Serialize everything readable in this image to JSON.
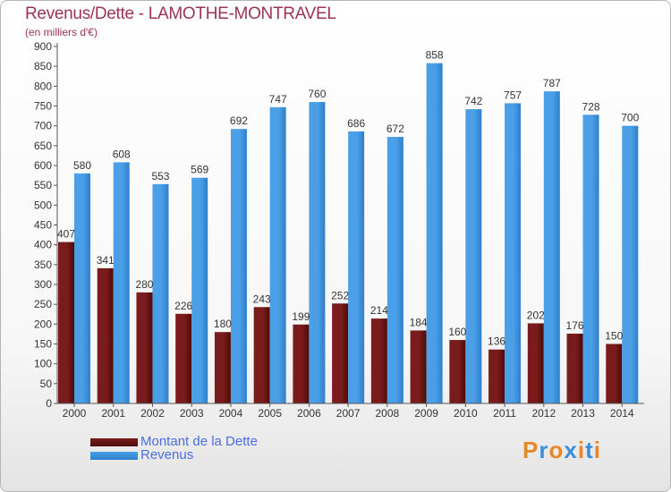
{
  "title": "Revenus/Dette - LAMOTHE-MONTRAVEL",
  "subtitle": "(en milliers d'€)",
  "chart_data": {
    "type": "bar",
    "categories": [
      "2000",
      "2001",
      "2002",
      "2003",
      "2004",
      "2005",
      "2006",
      "2007",
      "2008",
      "2009",
      "2010",
      "2011",
      "2012",
      "2013",
      "2014"
    ],
    "series": [
      {
        "name": "Montant de la Dette",
        "color": "#7b1c1c",
        "values": [
          407,
          341,
          280,
          226,
          180,
          243,
          199,
          252,
          214,
          184,
          160,
          136,
          202,
          176,
          150
        ]
      },
      {
        "name": "Revenus",
        "color": "#4a9fe6",
        "values": [
          580,
          608,
          553,
          569,
          692,
          747,
          760,
          686,
          672,
          858,
          742,
          757,
          787,
          728,
          700
        ]
      }
    ],
    "yticks": [
      0,
      50,
      100,
      150,
      200,
      250,
      300,
      350,
      400,
      450,
      500,
      550,
      600,
      650,
      700,
      750,
      800,
      850,
      900
    ],
    "ylim": [
      0,
      900
    ],
    "grid": false,
    "legend": "bottom-left"
  },
  "logo": {
    "text": "Proxiti",
    "colors": [
      "#e8872a",
      "#3a8fd8",
      "#e8872a",
      "#3a8fd8",
      "#e8872a",
      "#3a8fd8",
      "#e8872a"
    ]
  }
}
